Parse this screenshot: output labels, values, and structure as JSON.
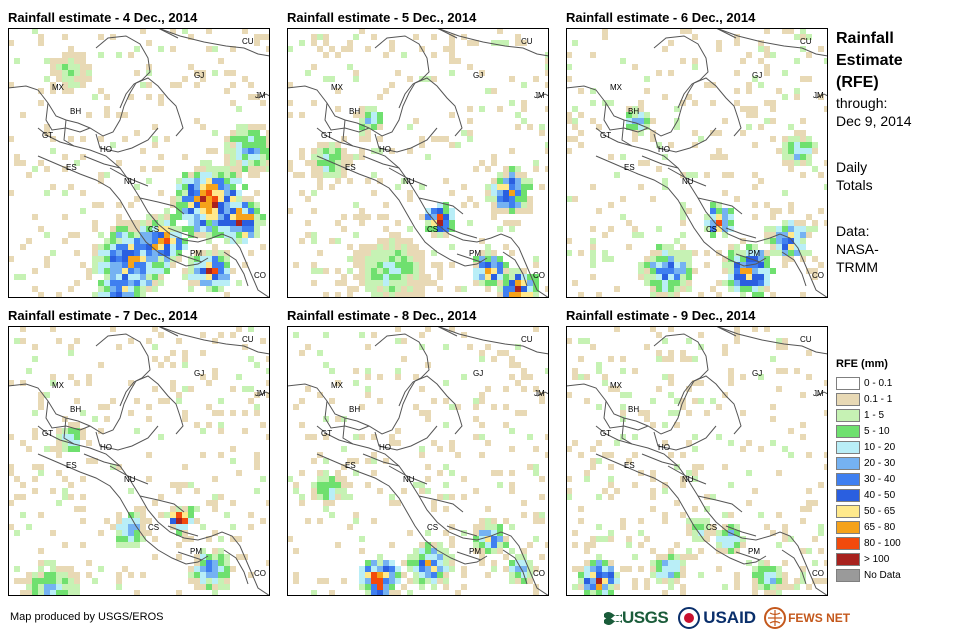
{
  "panels": [
    {
      "title": "Rainfall estimate - 4 Dec., 2014",
      "day": 4
    },
    {
      "title": "Rainfall estimate - 5 Dec., 2014",
      "day": 5
    },
    {
      "title": "Rainfall estimate - 6 Dec., 2014",
      "day": 6
    },
    {
      "title": "Rainfall estimate - 7 Dec., 2014",
      "day": 7
    },
    {
      "title": "Rainfall estimate - 8 Dec., 2014",
      "day": 8
    },
    {
      "title": "Rainfall estimate - 9 Dec., 2014",
      "day": 9
    }
  ],
  "map_labels": {
    "cu": "CU",
    "mx": "MX",
    "gj": "GJ",
    "jm": "JM",
    "bh": "BH",
    "gt": "GT",
    "ho": "HO",
    "es": "ES",
    "nu": "NU",
    "cs": "CS",
    "pm": "PM",
    "co": "CO"
  },
  "sidebar": {
    "title_line1": "Rainfall",
    "title_line2": "Estimate",
    "title_line3": "(RFE)",
    "through_label": "through:",
    "through_date": "Dec 9, 2014",
    "totals_line1": "Daily",
    "totals_line2": "Totals",
    "data_label": "Data:",
    "data_source_line1": "NASA-",
    "data_source_line2": "TRMM"
  },
  "legend": {
    "title": "RFE (mm)",
    "classes": [
      {
        "label": "0 - 0.1",
        "color": "#ffffff"
      },
      {
        "label": "0.1 - 1",
        "color": "#e8d9b5"
      },
      {
        "label": "1 - 5",
        "color": "#c6f2b4"
      },
      {
        "label": "5 - 10",
        "color": "#6fe06f"
      },
      {
        "label": "10 - 20",
        "color": "#b9eef7"
      },
      {
        "label": "20 - 30",
        "color": "#75b2f2"
      },
      {
        "label": "30 - 40",
        "color": "#3f7ff0"
      },
      {
        "label": "40 - 50",
        "color": "#2a5fe0"
      },
      {
        "label": "50 - 65",
        "color": "#ffe98c"
      },
      {
        "label": "65 - 80",
        "color": "#f5a21a"
      },
      {
        "label": "80 - 100",
        "color": "#f24a0c"
      },
      {
        "label": "> 100",
        "color": "#a8221e"
      },
      {
        "label": "No Data",
        "color": "#9a9a9a"
      }
    ]
  },
  "footer": {
    "credit": "Map produced by USGS/EROS",
    "logo_usgs": "USGS",
    "logo_usaid": "USAID",
    "logo_fews": "FEWS NET"
  },
  "colors": {
    "border": "#000000",
    "land_outline": "#555555"
  }
}
